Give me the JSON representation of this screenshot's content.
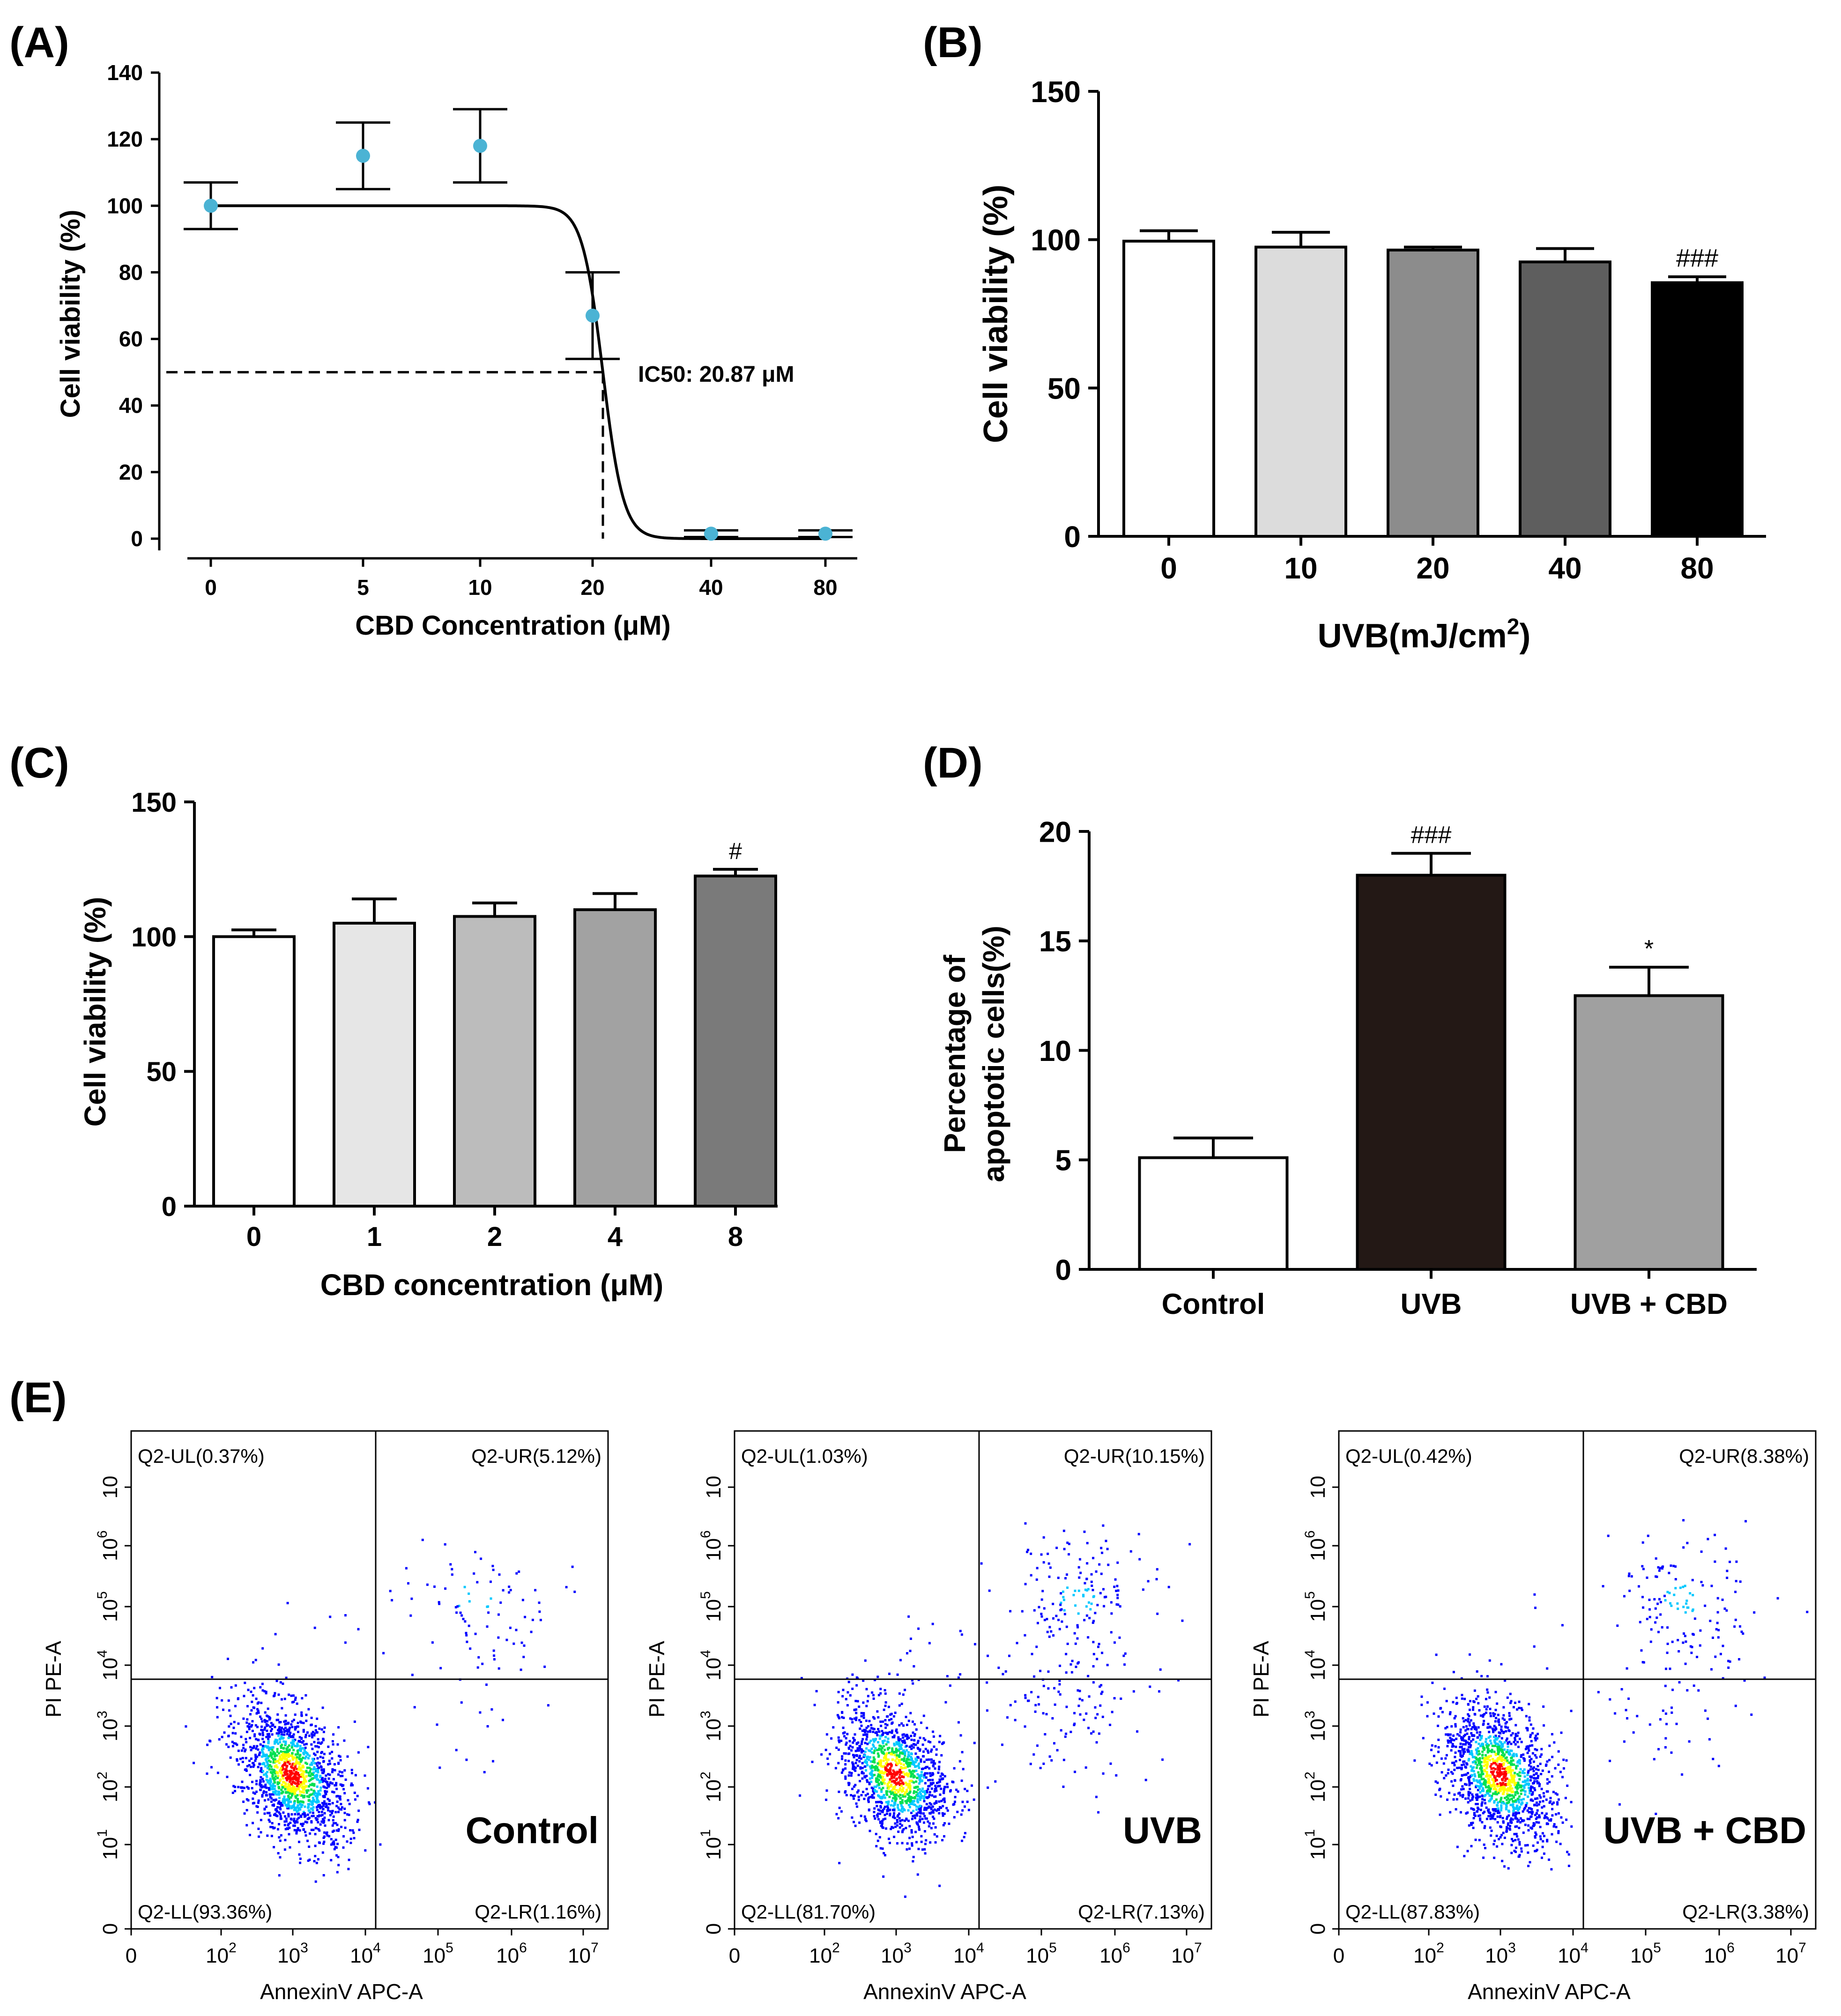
{
  "chart_data": [
    {
      "id": "A",
      "panel_label": "(A)",
      "type": "scatter",
      "title": "",
      "xlabel": "CBD Concentration (μM)",
      "ylabel": "Cell viability (%)",
      "x_tick_labels": [
        "0",
        "5",
        "10",
        "20",
        "40",
        "80"
      ],
      "y_ticks": [
        "0",
        "20",
        "40",
        "60",
        "80",
        "100",
        "120",
        "140"
      ],
      "ylim": [
        0,
        140
      ],
      "x": [
        "0",
        "5",
        "10",
        "20",
        "40",
        "80"
      ],
      "values": [
        100,
        115,
        118,
        67,
        1.5,
        1.5
      ],
      "errors": [
        7,
        10,
        11,
        13,
        1,
        1
      ],
      "fit": "sigmoidal dose-response curve",
      "ic50_annotation": "IC50: 20.87 μM",
      "ic50_level": 50,
      "point_color": "#4bb3d4"
    },
    {
      "id": "B",
      "panel_label": "(B)",
      "type": "bar",
      "title": "",
      "xlabel": "UVB(mJ/cm",
      "xlabel_superscript": "2",
      "xlabel_suffix": ")",
      "ylabel": "Cell viability (%)",
      "categories": [
        "0",
        "10",
        "20",
        "40",
        "80"
      ],
      "values": [
        99.5,
        97.5,
        96.5,
        92.5,
        85.5
      ],
      "errors": [
        3.5,
        5,
        1,
        4.5,
        2
      ],
      "annotations": [
        "",
        "",
        "",
        "",
        "###"
      ],
      "y_ticks": [
        "0",
        "50",
        "100",
        "150"
      ],
      "ylim": [
        0,
        150
      ],
      "bar_colors": [
        "#ffffff",
        "#dcdcdc",
        "#8c8c8c",
        "#5e5e5e",
        "#000000"
      ]
    },
    {
      "id": "C",
      "panel_label": "(C)",
      "type": "bar",
      "title": "",
      "xlabel": "CBD concentration (μM)",
      "ylabel": "Cell viability (%)",
      "categories": [
        "0",
        "1",
        "2",
        "4",
        "8"
      ],
      "values": [
        100,
        105,
        107.5,
        110,
        122.5
      ],
      "errors": [
        2.5,
        9,
        5,
        6,
        2.5
      ],
      "annotations": [
        "",
        "",
        "",
        "",
        "#"
      ],
      "y_ticks": [
        "0",
        "50",
        "100",
        "150"
      ],
      "ylim": [
        0,
        150
      ],
      "bar_colors": [
        "#ffffff",
        "#e6e6e6",
        "#bcbcbc",
        "#a2a2a2",
        "#7a7a7a"
      ]
    },
    {
      "id": "D",
      "panel_label": "(D)",
      "type": "bar",
      "title": "",
      "xlabel": "",
      "ylabel_line1": "Percentage of",
      "ylabel_line2": "apoptotic cells(%)",
      "categories": [
        "Control",
        "UVB",
        "UVB + CBD"
      ],
      "values": [
        5.1,
        18.0,
        12.5
      ],
      "errors": [
        0.9,
        1.0,
        1.3
      ],
      "annotations": [
        "",
        "###",
        "*"
      ],
      "y_ticks": [
        "0",
        "5",
        "10",
        "15",
        "20"
      ],
      "ylim": [
        0,
        20
      ],
      "bar_colors": [
        "#ffffff",
        "#231815",
        "#a0a0a0"
      ]
    },
    {
      "id": "E",
      "panel_label": "(E)",
      "type": "scatter",
      "title": "",
      "xlabel": "AnnexinV APC-A",
      "ylabel": "PI PE-A",
      "x_tick_labels": [
        "0",
        "10",
        "10",
        "10",
        "10",
        "10",
        "10"
      ],
      "x_tick_exponents": [
        "",
        "2",
        "3",
        "4",
        "5",
        "6",
        "7"
      ],
      "y_tick_labels": [
        "0",
        "10",
        "10",
        "10",
        "10",
        "10",
        "10"
      ],
      "y_tick_exponents": [
        "",
        "1",
        "2",
        "3",
        "4",
        "5",
        "6"
      ],
      "y_top_tick": "10",
      "plots": [
        {
          "name": "Control",
          "quadrants": {
            "UL": "Q2-UL(0.37%)",
            "UR": "Q2-UR(5.12%)",
            "LL": "Q2-LL(93.36%)",
            "LR": "Q2-LR(1.16%)"
          },
          "percentages": {
            "UL": 0.37,
            "UR": 5.12,
            "LL": 93.36,
            "LR": 1.16
          },
          "condition": "Control"
        },
        {
          "name": "UVB",
          "quadrants": {
            "UL": "Q2-UL(1.03%)",
            "UR": "Q2-UR(10.15%)",
            "LL": "Q2-LL(81.70%)",
            "LR": "Q2-LR(7.13%)"
          },
          "percentages": {
            "UL": 1.03,
            "UR": 10.15,
            "LL": 81.7,
            "LR": 7.13
          },
          "condition": "UVB"
        },
        {
          "name": "UVB + CBD",
          "quadrants": {
            "UL": "Q2-UL(0.42%)",
            "UR": "Q2-UR(8.38%)",
            "LL": "Q2-LL(87.83%)",
            "LR": "Q2-LR(3.38%)"
          },
          "percentages": {
            "UL": 0.42,
            "UR": 8.38,
            "LL": 87.83,
            "LR": 3.38
          },
          "condition": "UVB + CBD"
        }
      ],
      "density_colors": [
        "#0000ff",
        "#00c8ff",
        "#00e050",
        "#ffff00",
        "#ff0000"
      ]
    }
  ]
}
